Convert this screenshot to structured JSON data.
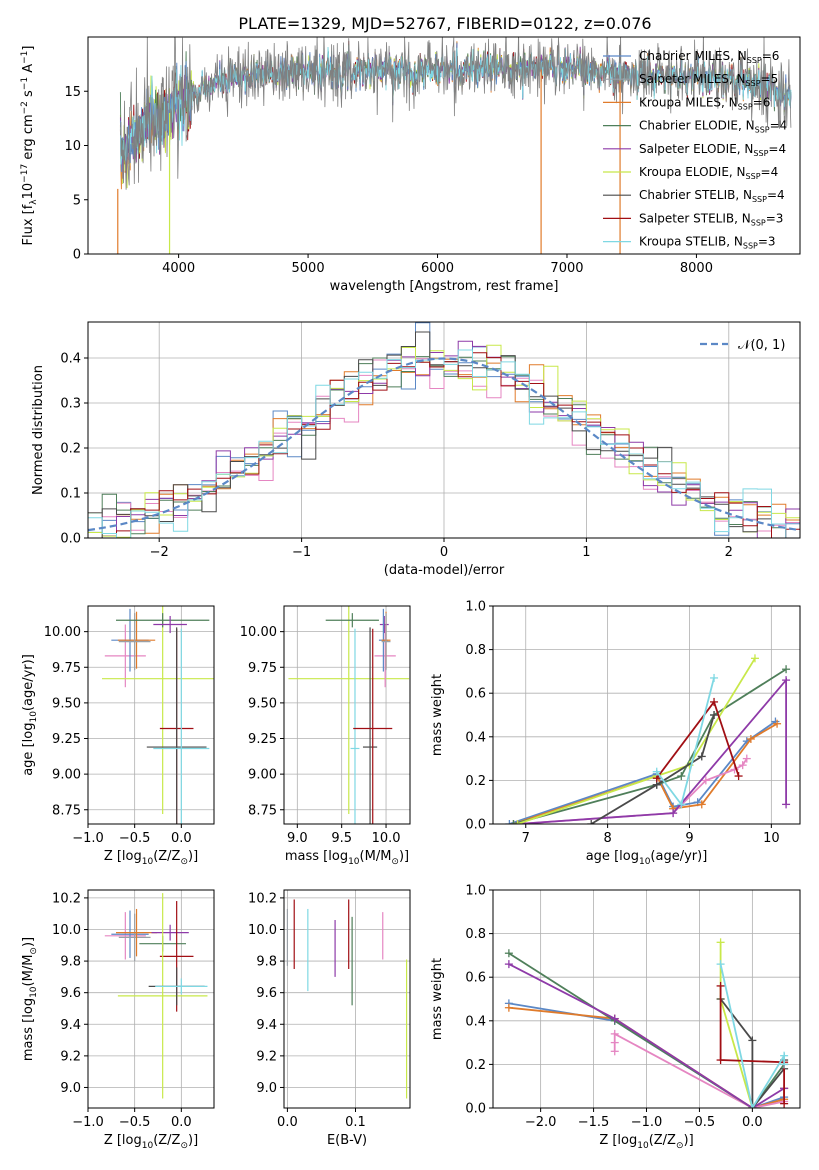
{
  "figure_title": "PLATE=1329, MJD=52767, FIBERID=0122, z=0.076",
  "colors": {
    "Chabrier MILES": "#5b88c6",
    "Salpeter MILES": "#9aa0a6",
    "Kroupa MILES": "#e07b2b",
    "Chabrier ELODIE": "#4f7f5a",
    "Salpeter ELODIE": "#8e3aa8",
    "Kroupa ELODIE": "#c8e84a",
    "Chabrier STELIB": "#4a4a4a",
    "Salpeter STELIB": "#a10f14",
    "Kroupa STELIB": "#7fd8e3",
    "pink": "#e586c2",
    "normal_curve": "#5b88c6",
    "data_spectrum": "#808080"
  },
  "chart_data": [
    {
      "id": "spectrum",
      "type": "line",
      "xlabel": "wavelength [Angstrom, rest frame]",
      "ylabel": "Flux [f",
      "ylabel_sub": "λ",
      "ylabel_mid": "10",
      "ylabel_sup1": "−17",
      "ylabel_mid2": " erg cm",
      "ylabel_sup2": "−2",
      "ylabel_mid3": " s",
      "ylabel_sup3": "−1",
      "ylabel_mid4": " A",
      "ylabel_sup4": "−1",
      "ylabel_end": "]",
      "xlim": [
        3300,
        8800
      ],
      "ylim": [
        0,
        20
      ],
      "xticks": [
        4000,
        5000,
        6000,
        7000,
        8000
      ],
      "yticks": [
        0,
        5,
        10,
        15
      ],
      "grid": false,
      "legend_placement": "upper-right",
      "legend": [
        {
          "name": "Chabrier MILES, N",
          "sub": "SSP",
          "tail": "=6"
        },
        {
          "name": "Salpeter MILES, N",
          "sub": "SSP",
          "tail": "=5"
        },
        {
          "name": "Kroupa MILES, N",
          "sub": "SSP",
          "tail": "=6"
        },
        {
          "name": "Chabrier ELODIE, N",
          "sub": "SSP",
          "tail": "=4"
        },
        {
          "name": "Salpeter ELODIE, N",
          "sub": "SSP",
          "tail": "=4"
        },
        {
          "name": "Kroupa ELODIE, N",
          "sub": "SSP",
          "tail": "=4"
        },
        {
          "name": "Chabrier STELIB, N",
          "sub": "SSP",
          "tail": "=4"
        },
        {
          "name": "Salpeter STELIB, N",
          "sub": "SSP",
          "tail": "=3"
        },
        {
          "name": "Kroupa STELIB, N",
          "sub": "SSP",
          "tail": "=3"
        }
      ],
      "continuum": [
        [
          3550,
          9.5
        ],
        [
          3700,
          11.5
        ],
        [
          3900,
          12.8
        ],
        [
          4100,
          14.5
        ],
        [
          4300,
          15.8
        ],
        [
          4600,
          16.6
        ],
        [
          5000,
          16.9
        ],
        [
          5500,
          17.0
        ],
        [
          6000,
          16.9
        ],
        [
          6500,
          17.1
        ],
        [
          7000,
          17.3
        ],
        [
          7500,
          16.3
        ],
        [
          8000,
          16.5
        ],
        [
          8500,
          15.6
        ],
        [
          8730,
          14.6
        ]
      ],
      "noise_amplitude": 1.3,
      "dropouts": [
        {
          "x": 3530,
          "color": "Kroupa MILES",
          "top": 6
        },
        {
          "x": 3930,
          "color": "Kroupa ELODIE",
          "top": 13
        },
        {
          "x": 6800,
          "color": "Kroupa MILES",
          "top": 17
        },
        {
          "x": 7410,
          "color": "Kroupa MILES",
          "top": 16
        }
      ]
    },
    {
      "id": "residuals",
      "type": "line",
      "xlabel": "(data-model)/error",
      "ylabel": "Normed distribution",
      "xlim": [
        -2.5,
        2.5
      ],
      "ylim": [
        0,
        0.48
      ],
      "xticks": [
        -2,
        -1,
        0,
        1,
        2
      ],
      "yticks": [
        0.0,
        0.1,
        0.2,
        0.3,
        0.4
      ],
      "grid": true,
      "legend_placement": "upper-right",
      "legend_label": "𝒩(0, 1)",
      "bin_width": 0.1
    },
    {
      "id": "age_vs_Z",
      "type": "scatter",
      "xlabel": "Z [log",
      "xlabel_sub": "10",
      "xlabel_end": "(Z/Z",
      "xlabel_sun": "⊙",
      "xlabel_close": ")]",
      "ylabel": "age  [log",
      "ylabel_sub": "10",
      "ylabel_end": "(age/yr)]",
      "xlim": [
        -1.0,
        0.35
      ],
      "ylim": [
        8.65,
        10.18
      ],
      "xticks": [
        -1.0,
        -0.5,
        0.0
      ],
      "yticks": [
        8.75,
        9.0,
        9.25,
        9.5,
        9.75,
        10.0
      ],
      "grid": true,
      "points": [
        {
          "color": "pink",
          "x": -0.6,
          "xerr": 0.22,
          "y": 9.83,
          "yerr": 0.22
        },
        {
          "color": "Chabrier MILES",
          "x": -0.55,
          "xerr": 0.2,
          "y": 9.94,
          "yerr": 0.22
        },
        {
          "color": "Kroupa MILES",
          "x": -0.48,
          "xerr": 0.2,
          "y": 9.94,
          "yerr": 0.2
        },
        {
          "color": "Salpeter MILES",
          "x": -0.5,
          "xerr": 0.17,
          "y": 9.93,
          "yerr": 0.2
        },
        {
          "color": "Kroupa ELODIE",
          "x": -0.2,
          "xerr": 0.65,
          "y": 9.67,
          "yerr": 0.95
        },
        {
          "color": "Chabrier ELODIE",
          "x": -0.2,
          "xerr": 0.5,
          "y": 10.08,
          "yerr": 0.05
        },
        {
          "color": "Salpeter ELODIE",
          "x": -0.12,
          "xerr": 0.18,
          "y": 10.05,
          "yerr": 0.06
        },
        {
          "color": "Salpeter STELIB",
          "x": -0.05,
          "xerr": 0.18,
          "y": 9.32,
          "yerr": 0.7
        },
        {
          "color": "Chabrier STELIB",
          "x": -0.05,
          "xerr": 0.32,
          "y": 9.19,
          "yerr": 0.84
        },
        {
          "color": "Kroupa STELIB",
          "x": 0.0,
          "xerr": 0.3,
          "y": 9.18,
          "yerr": 0.84
        }
      ]
    },
    {
      "id": "age_vs_mass",
      "type": "scatter",
      "xlabel": "mass [log",
      "xlabel_sub": "10",
      "xlabel_end": "(M/M",
      "xlabel_sun": "⊙",
      "xlabel_close": ")]",
      "ylabel": "",
      "xlim": [
        8.85,
        10.27
      ],
      "ylim": [
        8.65,
        10.18
      ],
      "xticks": [
        9.0,
        9.5,
        10.0
      ],
      "yticks": [
        8.75,
        9.0,
        9.25,
        9.5,
        9.75,
        10.0
      ],
      "grid": true,
      "points": [
        {
          "color": "Kroupa ELODIE",
          "x": 9.58,
          "xerr": 0.68,
          "y": 9.67,
          "yerr": 0.95
        },
        {
          "color": "Chabrier ELODIE",
          "x": 9.62,
          "xerr": 0.3,
          "y": 10.08,
          "yerr": 0.05
        },
        {
          "color": "Kroupa STELIB",
          "x": 9.65,
          "xerr": 0.05,
          "y": 9.18,
          "yerr": 0.84
        },
        {
          "color": "Chabrier STELIB",
          "x": 9.82,
          "xerr": 0.08,
          "y": 9.19,
          "yerr": 0.84
        },
        {
          "color": "Salpeter STELIB",
          "x": 9.85,
          "xerr": 0.22,
          "y": 9.32,
          "yerr": 0.7
        },
        {
          "color": "pink",
          "x": 9.99,
          "xerr": 0.12,
          "y": 9.83,
          "yerr": 0.22
        },
        {
          "color": "Salpeter ELODIE",
          "x": 9.98,
          "xerr": 0.05,
          "y": 10.05,
          "yerr": 0.06
        },
        {
          "color": "Chabrier MILES",
          "x": 9.97,
          "xerr": 0.05,
          "y": 9.94,
          "yerr": 0.22
        },
        {
          "color": "Kroupa MILES",
          "x": 10.0,
          "xerr": 0.05,
          "y": 9.94,
          "yerr": 0.2
        },
        {
          "color": "Salpeter MILES",
          "x": 10.0,
          "xerr": 0.05,
          "y": 9.93,
          "yerr": 0.2
        }
      ]
    },
    {
      "id": "mass_weight_vs_age",
      "type": "line",
      "xlabel": "age  [log",
      "xlabel_sub": "10",
      "xlabel_end": "(age/yr)]",
      "ylabel": "mass weight",
      "xlim": [
        6.6,
        10.35
      ],
      "ylim": [
        0,
        1.0
      ],
      "xticks": [
        7,
        8,
        9,
        10
      ],
      "yticks": [
        0.0,
        0.2,
        0.4,
        0.6,
        0.8,
        1.0
      ],
      "grid": true,
      "series": [
        {
          "color": "Chabrier MILES",
          "x": [
            6.8,
            8.6,
            8.8,
            9.1,
            9.7,
            10.05
          ],
          "y": [
            0.0,
            0.23,
            0.08,
            0.1,
            0.38,
            0.47
          ]
        },
        {
          "color": "Kroupa MILES",
          "x": [
            6.85,
            8.6,
            8.8,
            9.15,
            9.75,
            10.07
          ],
          "y": [
            0.0,
            0.22,
            0.07,
            0.09,
            0.39,
            0.46
          ]
        },
        {
          "color": "pink",
          "x": [
            6.9,
            8.8,
            9.2,
            9.55,
            9.65,
            9.7
          ],
          "y": [
            0.0,
            0.05,
            0.2,
            0.25,
            0.27,
            0.3
          ]
        },
        {
          "color": "Chabrier ELODIE",
          "x": [
            6.85,
            8.6,
            8.9,
            9.3,
            10.18
          ],
          "y": [
            0.0,
            0.18,
            0.22,
            0.5,
            0.71
          ]
        },
        {
          "color": "Salpeter ELODIE",
          "x": [
            6.9,
            8.8,
            10.18,
            10.18
          ],
          "y": [
            0.0,
            0.05,
            0.66,
            0.09
          ]
        },
        {
          "color": "Kroupa ELODIE",
          "x": [
            6.9,
            8.6,
            9.0,
            9.8
          ],
          "y": [
            0.0,
            0.22,
            0.27,
            0.76
          ]
        },
        {
          "color": "Chabrier STELIB",
          "x": [
            7.8,
            8.6,
            9.15,
            9.3
          ],
          "y": [
            0.0,
            0.18,
            0.31,
            0.5
          ]
        },
        {
          "color": "Salpeter STELIB",
          "x": [
            8.6,
            9.3,
            9.6
          ],
          "y": [
            0.21,
            0.56,
            0.22
          ]
        },
        {
          "color": "Kroupa STELIB",
          "x": [
            8.6,
            8.9,
            9.3
          ],
          "y": [
            0.24,
            0.09,
            0.67
          ]
        }
      ]
    },
    {
      "id": "mass_vs_Z",
      "type": "scatter",
      "xlabel": "Z [log",
      "xlabel_sub": "10",
      "xlabel_end": "(Z/Z",
      "xlabel_sun": "⊙",
      "xlabel_close": ")]",
      "ylabel": "mass [log",
      "ylabel_sub": "10",
      "ylabel_end": "(M/M",
      "ylabel_sun": "⊙",
      "ylabel_close": ")]",
      "xlim": [
        -1.0,
        0.35
      ],
      "ylim": [
        8.87,
        10.25
      ],
      "xticks": [
        -1.0,
        -0.5,
        0.0
      ],
      "yticks": [
        9.0,
        9.2,
        9.4,
        9.6,
        9.8,
        10.0,
        10.2
      ],
      "grid": true,
      "points": [
        {
          "color": "pink",
          "x": -0.6,
          "xerr": 0.22,
          "y": 9.96,
          "yerr": 0.15
        },
        {
          "color": "Chabrier MILES",
          "x": -0.55,
          "xerr": 0.2,
          "y": 9.97,
          "yerr": 0.15
        },
        {
          "color": "Salpeter MILES",
          "x": -0.5,
          "xerr": 0.17,
          "y": 9.95,
          "yerr": 0.15
        },
        {
          "color": "Kroupa MILES",
          "x": -0.48,
          "xerr": 0.22,
          "y": 9.98,
          "yerr": 0.15
        },
        {
          "color": "Salpeter ELODIE",
          "x": -0.12,
          "xerr": 0.2,
          "y": 9.98,
          "yerr": 0.05
        },
        {
          "color": "Chabrier ELODIE",
          "x": -0.2,
          "xerr": 0.25,
          "y": 9.91,
          "yerr": 0.05
        },
        {
          "color": "Salpeter STELIB",
          "x": -0.05,
          "xerr": 0.18,
          "y": 9.83,
          "yerr": 0.35
        },
        {
          "color": "Kroupa ELODIE",
          "x": -0.2,
          "xerr": 0.48,
          "y": 9.58,
          "yerr": 0.65
        },
        {
          "color": "Chabrier STELIB",
          "x": -0.05,
          "xerr": 0.3,
          "y": 9.64,
          "yerr": 0.12
        },
        {
          "color": "Kroupa STELIB",
          "x": 0.0,
          "xerr": 0.28,
          "y": 9.64,
          "yerr": 0.05
        }
      ]
    },
    {
      "id": "mass_vs_EBV",
      "type": "scatter",
      "xlabel": "E(B-V)",
      "ylabel": "",
      "xlim": [
        -0.005,
        0.18
      ],
      "ylim": [
        8.87,
        10.25
      ],
      "xticks": [
        0.0,
        0.1
      ],
      "yticks": [
        9.0,
        9.2,
        9.4,
        9.6,
        9.8,
        10.0,
        10.2
      ],
      "grid": true,
      "points": [
        {
          "color": "Salpeter MILES",
          "x": 0.0,
          "xerr": 0.0,
          "y": 9.95,
          "yerr": 0.18
        },
        {
          "color": "Salpeter STELIB",
          "x": 0.01,
          "xerr": 0.0,
          "y": 9.97,
          "yerr": 0.22
        },
        {
          "color": "Kroupa STELIB",
          "x": 0.03,
          "xerr": 0.0,
          "y": 9.87,
          "yerr": 0.26
        },
        {
          "color": "Salpeter ELODIE",
          "x": 0.07,
          "xerr": 0.0,
          "y": 9.88,
          "yerr": 0.18
        },
        {
          "color": "Salpeter STELIB",
          "x": 0.09,
          "xerr": 0.0,
          "y": 9.97,
          "yerr": 0.22
        },
        {
          "color": "Chabrier ELODIE",
          "x": 0.095,
          "xerr": 0.0,
          "y": 9.8,
          "yerr": 0.28
        },
        {
          "color": "pink",
          "x": 0.14,
          "xerr": 0.0,
          "y": 9.96,
          "yerr": 0.15
        },
        {
          "color": "Kroupa ELODIE",
          "x": 0.175,
          "xerr": 0.0,
          "y": 9.37,
          "yerr": 0.44
        }
      ]
    },
    {
      "id": "mass_weight_vs_Z",
      "type": "line",
      "xlabel": "Z [log",
      "xlabel_sub": "10",
      "xlabel_end": "(Z/Z",
      "xlabel_sun": "⊙",
      "xlabel_close": ")]",
      "ylabel": "mass weight",
      "xlim": [
        -2.45,
        0.45
      ],
      "ylim": [
        0,
        1.0
      ],
      "xticks": [
        -2.0,
        -1.5,
        -1.0,
        -0.5,
        0.0
      ],
      "yticks": [
        0.0,
        0.2,
        0.4,
        0.6,
        0.8,
        1.0
      ],
      "grid": true,
      "series": [
        {
          "color": "Chabrier MILES",
          "x": [
            -2.3,
            -1.3,
            0.0,
            0.3,
            0.3
          ],
          "y": [
            0.48,
            0.4,
            0.0,
            0.05,
            0.09
          ]
        },
        {
          "color": "Kroupa MILES",
          "x": [
            -2.3,
            -1.3,
            0.0,
            0.3,
            0.3
          ],
          "y": [
            0.46,
            0.41,
            0.0,
            0.04,
            0.09
          ]
        },
        {
          "color": "pink",
          "x": [
            -1.3,
            -1.3,
            -1.3,
            0.0,
            0.3
          ],
          "y": [
            0.26,
            0.3,
            0.34,
            0.0,
            0.03
          ]
        },
        {
          "color": "Chabrier ELODIE",
          "x": [
            -2.3,
            -1.3,
            0.0,
            0.3
          ],
          "y": [
            0.71,
            0.4,
            0.0,
            0.2
          ]
        },
        {
          "color": "Salpeter ELODIE",
          "x": [
            -2.3,
            -1.3,
            0.0,
            0.3
          ],
          "y": [
            0.66,
            0.41,
            0.0,
            0.09
          ]
        },
        {
          "color": "Kroupa ELODIE",
          "x": [
            -0.3,
            -0.3,
            0.0
          ],
          "y": [
            0.76,
            0.5,
            0.0
          ]
        },
        {
          "color": "Chabrier STELIB",
          "x": [
            -0.3,
            0.0,
            0.0,
            0.3,
            0.3
          ],
          "y": [
            0.5,
            0.31,
            0.0,
            0.18,
            0.22
          ]
        },
        {
          "color": "Salpeter STELIB",
          "x": [
            -0.3,
            -0.3,
            0.3,
            0.3
          ],
          "y": [
            0.56,
            0.22,
            0.21,
            0.02
          ]
        },
        {
          "color": "Kroupa STELIB",
          "x": [
            -0.3,
            0.0,
            0.3,
            0.3
          ],
          "y": [
            0.66,
            0.0,
            0.24,
            0.2
          ]
        }
      ]
    }
  ]
}
